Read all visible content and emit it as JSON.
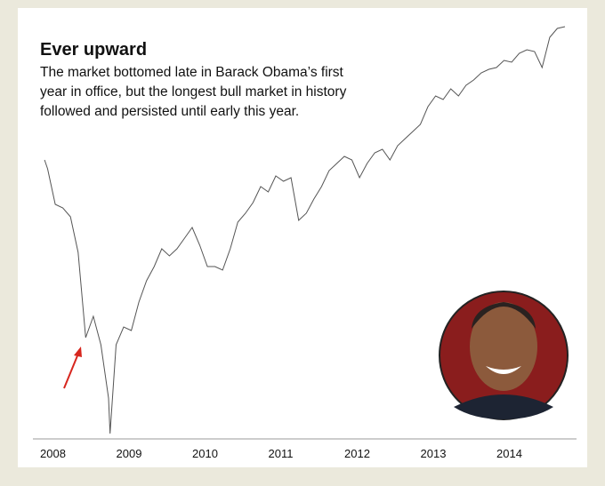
{
  "chart_data": {
    "type": "line",
    "title": "Ever upward",
    "subtitle": [
      "The market bottomed late in Barack Obama’s first",
      "year in office, but the longest bull market in history",
      "followed and persisted until early this year."
    ],
    "x": [
      2008.06,
      2008.1,
      2008.2,
      2008.3,
      2008.4,
      2008.5,
      2008.6,
      2008.7,
      2008.8,
      2008.9,
      2008.92,
      2009.0,
      2009.1,
      2009.2,
      2009.3,
      2009.4,
      2009.5,
      2009.6,
      2009.7,
      2009.8,
      2009.9,
      2010.0,
      2010.1,
      2010.2,
      2010.3,
      2010.4,
      2010.5,
      2010.6,
      2010.7,
      2010.8,
      2010.9,
      2011.0,
      2011.1,
      2011.2,
      2011.3,
      2011.4,
      2011.5,
      2011.6,
      2011.7,
      2011.8,
      2011.9,
      2012.0,
      2012.1,
      2012.2,
      2012.3,
      2012.4,
      2012.5,
      2012.6,
      2012.7,
      2012.8,
      2012.9,
      2013.0,
      2013.1,
      2013.2,
      2013.3,
      2013.4,
      2013.5,
      2013.6,
      2013.7,
      2013.8,
      2013.9,
      2014.0,
      2014.1,
      2014.2,
      2014.3,
      2014.4,
      2014.5,
      2014.6,
      2014.7,
      2014.8,
      2014.9
    ],
    "series": [
      {
        "color": "#555555",
        "values": [
          1400,
          1375,
          1275,
          1265,
          1240,
          1140,
          900,
          960,
          880,
          730,
          630,
          880,
          930,
          920,
          1000,
          1060,
          1100,
          1150,
          1130,
          1150,
          1180,
          1210,
          1160,
          1100,
          1100,
          1090,
          1150,
          1225,
          1250,
          1280,
          1325,
          1310,
          1355,
          1340,
          1350,
          1230,
          1250,
          1290,
          1325,
          1370,
          1390,
          1410,
          1400,
          1350,
          1390,
          1420,
          1430,
          1400,
          1440,
          1460,
          1480,
          1500,
          1550,
          1580,
          1570,
          1600,
          1580,
          1610,
          1625,
          1645,
          1655,
          1660,
          1680,
          1675,
          1700,
          1710,
          1705,
          1660,
          1745,
          1770,
          1775
        ]
      }
    ],
    "xlim": [
      2008,
      2015
    ],
    "xticks": [
      2008,
      2009,
      2010,
      2011,
      2012,
      2013,
      2014
    ],
    "ylim": [
      600,
      1800
    ]
  }
}
